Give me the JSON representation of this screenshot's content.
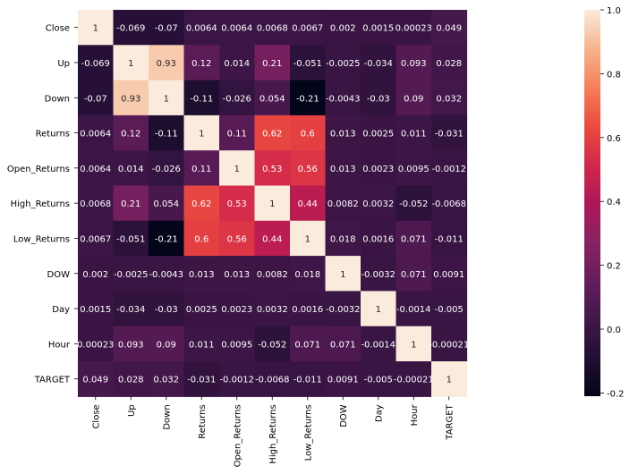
{
  "chart_data": {
    "type": "heatmap",
    "labels": [
      "Close",
      "Up",
      "Down",
      "Returns",
      "Open_Returns",
      "High_Returns",
      "Low_Returns",
      "DOW",
      "Day",
      "Hour",
      "TARGET"
    ],
    "values": [
      [
        1,
        -0.069,
        -0.07,
        0.0064,
        0.0064,
        0.0068,
        0.0067,
        0.002,
        0.0015,
        0.00023,
        0.049
      ],
      [
        -0.069,
        1,
        0.93,
        0.12,
        0.014,
        0.21,
        -0.051,
        -0.0025,
        -0.034,
        0.093,
        0.028
      ],
      [
        -0.07,
        0.93,
        1,
        -0.11,
        -0.026,
        0.054,
        -0.21,
        -0.0043,
        -0.03,
        0.09,
        0.032
      ],
      [
        0.0064,
        0.12,
        -0.11,
        1,
        0.11,
        0.62,
        0.6,
        0.013,
        0.0025,
        0.011,
        -0.031
      ],
      [
        0.0064,
        0.014,
        -0.026,
        0.11,
        1,
        0.53,
        0.56,
        0.013,
        0.0023,
        0.0095,
        -0.0012
      ],
      [
        0.0068,
        0.21,
        0.054,
        0.62,
        0.53,
        1,
        0.44,
        0.0082,
        0.0032,
        -0.052,
        -0.0068
      ],
      [
        0.0067,
        -0.051,
        -0.21,
        0.6,
        0.56,
        0.44,
        1,
        0.018,
        0.0016,
        0.071,
        -0.011
      ],
      [
        0.002,
        -0.0025,
        -0.0043,
        0.013,
        0.013,
        0.0082,
        0.018,
        1,
        -0.0032,
        0.071,
        0.0091
      ],
      [
        0.0015,
        -0.034,
        -0.03,
        0.0025,
        0.0023,
        0.0032,
        0.0016,
        -0.0032,
        1,
        -0.0014,
        -0.005
      ],
      [
        0.00023,
        0.093,
        0.09,
        0.011,
        0.0095,
        -0.052,
        0.071,
        0.071,
        -0.0014,
        1,
        -0.00021
      ],
      [
        0.049,
        0.028,
        0.032,
        -0.031,
        -0.0012,
        -0.0068,
        -0.011,
        0.0091,
        -0.005,
        -0.00021,
        1
      ]
    ],
    "colorbar": {
      "range": [
        -0.21,
        1.0
      ],
      "ticks": [
        1.0,
        0.8,
        0.6,
        0.4,
        0.2,
        0.0,
        -0.2
      ],
      "tick_labels": [
        "1.0",
        "0.8",
        "0.6",
        "0.4",
        "0.2",
        "0.0",
        "-0.2"
      ],
      "colormap": "rocket"
    },
    "annotations": true,
    "grid": false
  }
}
